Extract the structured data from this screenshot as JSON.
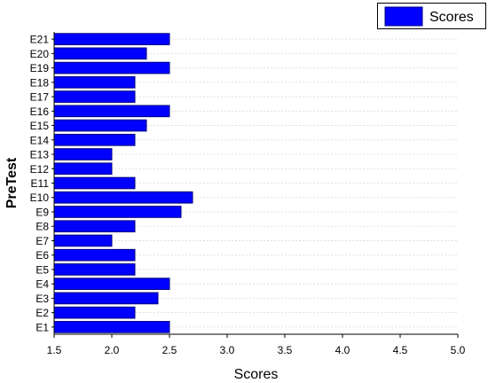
{
  "chart_data": {
    "type": "bar",
    "orientation": "horizontal",
    "categories": [
      "E1",
      "E2",
      "E3",
      "E4",
      "E5",
      "E6",
      "E7",
      "E8",
      "E9",
      "E10",
      "E11",
      "E12",
      "E13",
      "E14",
      "E15",
      "E16",
      "E17",
      "E18",
      "E19",
      "E20",
      "E21"
    ],
    "series": [
      {
        "name": "Scores",
        "values": [
          2.5,
          2.2,
          2.4,
          2.5,
          2.2,
          2.2,
          2.0,
          2.2,
          2.6,
          2.7,
          2.2,
          2.0,
          2.0,
          2.2,
          2.3,
          2.5,
          2.2,
          2.2,
          2.5,
          2.3,
          2.5
        ],
        "color": "#0000ff",
        "stroke": "#000080"
      }
    ],
    "title": "",
    "xlabel": "Scores",
    "ylabel": "PreTest",
    "xlim": [
      1.5,
      5.0
    ],
    "xticks": [
      "1.5",
      "2.0",
      "2.5",
      "3.0",
      "3.5",
      "4.0",
      "4.5",
      "5.0"
    ],
    "grid": true,
    "legend": {
      "placement": "top-right",
      "label": "Scores"
    }
  }
}
